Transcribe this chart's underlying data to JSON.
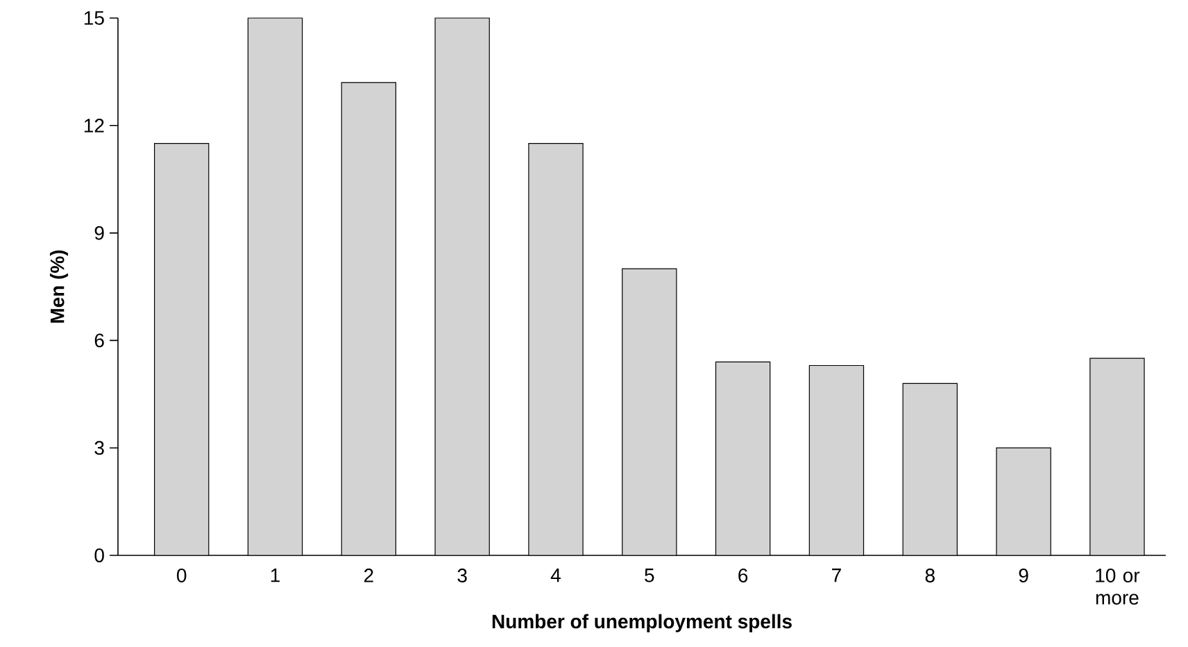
{
  "chart_data": {
    "type": "bar",
    "xlabel": "Number of unemployment spells",
    "ylabel": "Men (%)",
    "categories": [
      "0",
      "1",
      "2",
      "3",
      "4",
      "5",
      "6",
      "7",
      "8",
      "9",
      "10 or more"
    ],
    "values": [
      11.5,
      15,
      13.2,
      15,
      11.5,
      8,
      5.4,
      5.3,
      4.8,
      3,
      5.5
    ],
    "color": "#d3d3d3",
    "ylim": [
      0,
      15
    ],
    "yticks": [
      0,
      3,
      6,
      9,
      12,
      15
    ]
  }
}
